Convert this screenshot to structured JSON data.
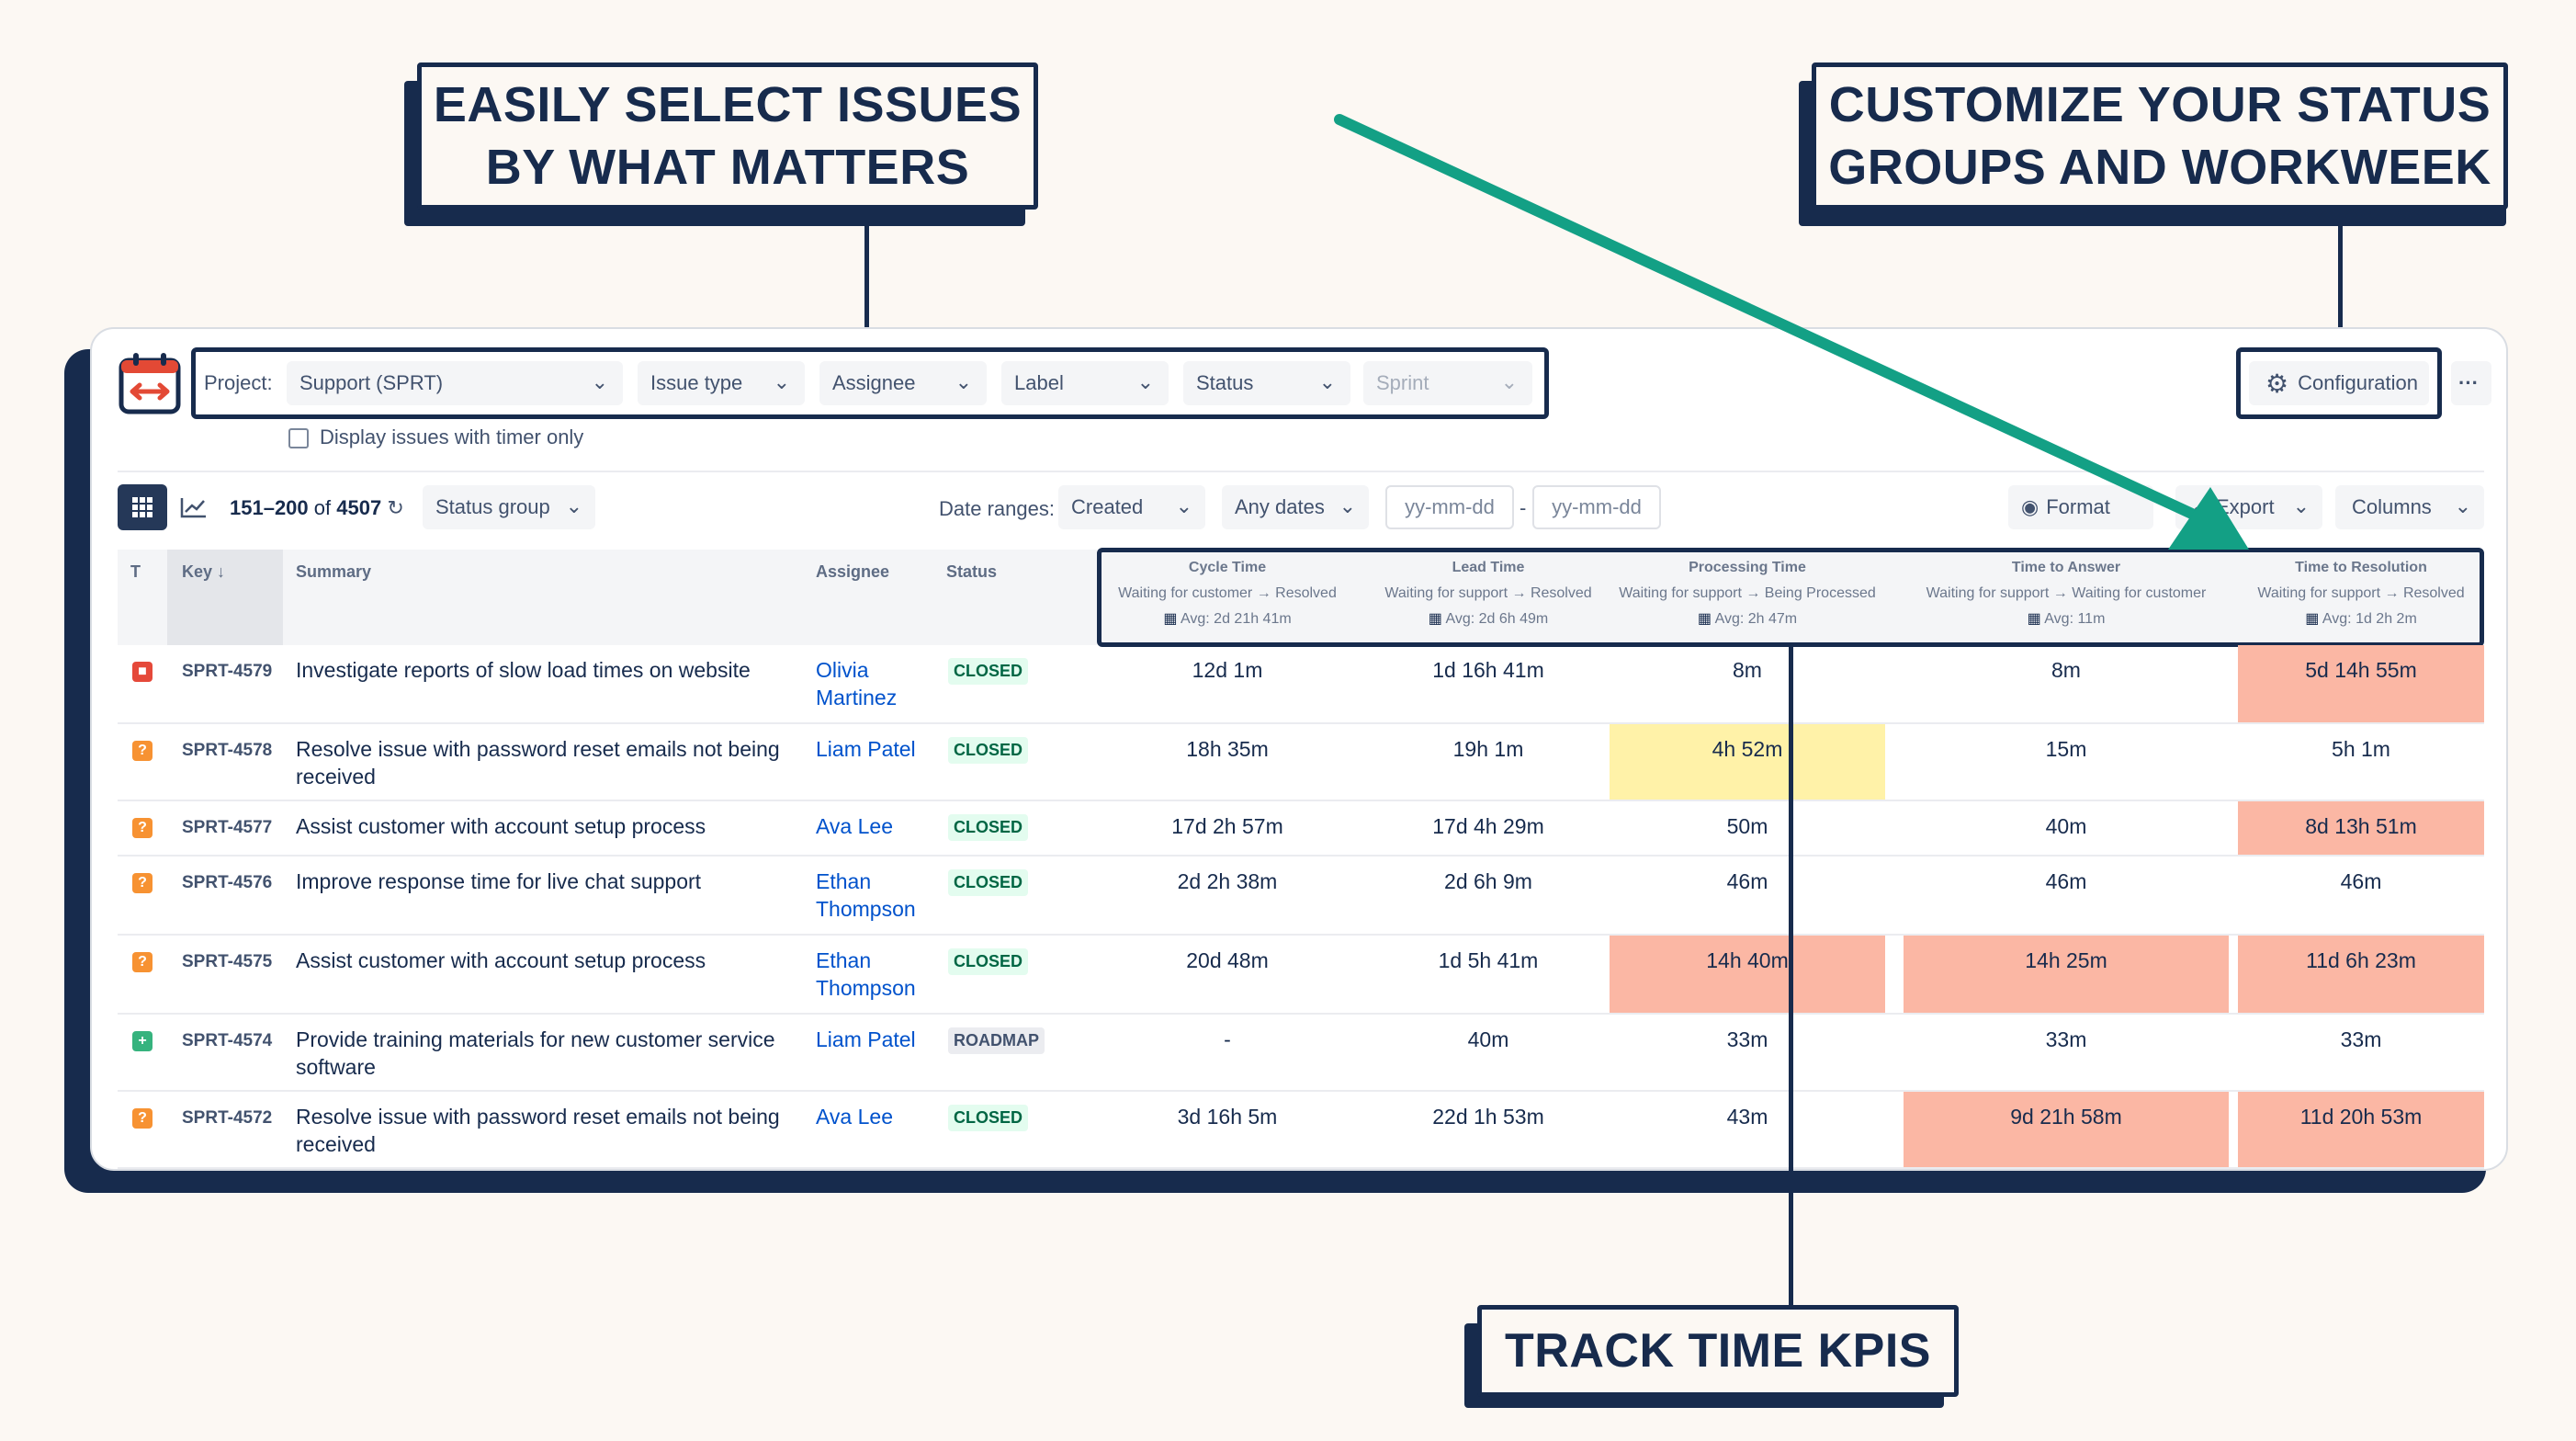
{
  "callouts": {
    "select_issues": [
      "EASILY SELECT ISSUES",
      "BY WHAT MATTERS"
    ],
    "customize": [
      "CUSTOMIZE YOUR STATUS",
      "GROUPS AND WORKWEEK"
    ],
    "track": [
      "TRACK TIME KPIS"
    ]
  },
  "colors": {
    "arrow": "#13a085",
    "dark": "#172b4d",
    "highlight_red": "#fbb7a4",
    "highlight_yellow": "#fff2a8",
    "closed_bg": "#e3fcef"
  },
  "toolbar": {
    "project_label": "Project:",
    "project_value": "Support (SPRT)",
    "filters": [
      "Issue type",
      "Assignee",
      "Label",
      "Status",
      "Sprint"
    ],
    "configuration": "Configuration",
    "more": "···",
    "timer_only": "Display issues with timer only"
  },
  "subbar": {
    "range": "151–200",
    "of": "of",
    "total": "4507",
    "status_group": "Status group",
    "date_ranges_label": "Date ranges:",
    "created": "Created",
    "any_dates": "Any dates",
    "date_from_placeholder": "yy-mm-dd",
    "date_to_placeholder": "yy-mm-dd",
    "dash": "-",
    "format": "Format",
    "export": "Export",
    "columns": "Columns"
  },
  "table": {
    "headers": {
      "type": "T",
      "key": "Key ↓",
      "summary": "Summary",
      "assignee": "Assignee",
      "status": "Status"
    },
    "kpis": [
      {
        "title": "Cycle Time",
        "range": "Waiting for customer → Resolved",
        "avg": "Avg: 2d 21h 41m"
      },
      {
        "title": "Lead Time",
        "range": "Waiting for support → Resolved",
        "avg": "Avg: 2d 6h 49m"
      },
      {
        "title": "Processing Time",
        "range": "Waiting for support → Being Processed",
        "avg": "Avg: 2h 47m"
      },
      {
        "title": "Time to Answer",
        "range": "Waiting for support → Waiting for customer",
        "avg": "Avg: 11m"
      },
      {
        "title": "Time to Resolution",
        "range": "Waiting for support → Resolved",
        "avg": "Avg: 1d 2h 2m"
      }
    ],
    "rows": [
      {
        "type": "bug",
        "key": "SPRT-4579",
        "summary": [
          "Investigate reports of slow load times on website"
        ],
        "assignee": [
          "Olivia",
          "Martinez"
        ],
        "status": "CLOSED",
        "kpis": [
          "12d 1m",
          "1d 16h 41m",
          "8m",
          "8m",
          "5d 14h 55m"
        ],
        "hl": [
          "",
          "",
          "",
          "",
          "red"
        ]
      },
      {
        "type": "question",
        "key": "SPRT-4578",
        "summary": [
          "Resolve issue with password reset emails not being",
          "received"
        ],
        "assignee": [
          "Liam Patel"
        ],
        "status": "CLOSED",
        "kpis": [
          "18h  35m",
          "19h 1m",
          "4h 52m",
          "15m",
          "5h 1m"
        ],
        "hl": [
          "",
          "",
          "yellow",
          "",
          ""
        ]
      },
      {
        "type": "question",
        "key": "SPRT-4577",
        "summary": [
          "Assist customer with account setup process"
        ],
        "assignee": [
          "Ava Lee"
        ],
        "status": "CLOSED",
        "kpis": [
          "17d 2h 57m",
          "17d 4h 29m",
          "50m",
          "40m",
          "8d 13h 51m"
        ],
        "hl": [
          "",
          "",
          "",
          "",
          "red"
        ]
      },
      {
        "type": "question",
        "key": "SPRT-4576",
        "summary": [
          "Improve response time for live chat support"
        ],
        "assignee": [
          "Ethan",
          "Thompson"
        ],
        "status": "CLOSED",
        "kpis": [
          "2d 2h 38m",
          "2d 6h 9m",
          "46m",
          "46m",
          "46m"
        ],
        "hl": [
          "",
          "",
          "",
          "",
          ""
        ]
      },
      {
        "type": "question",
        "key": "SPRT-4575",
        "summary": [
          "Assist customer with account setup process"
        ],
        "assignee": [
          "Ethan",
          "Thompson"
        ],
        "status": "CLOSED",
        "kpis": [
          "20d 48m",
          "1d 5h 41m",
          "14h 40m",
          "14h 25m",
          "11d 6h 23m"
        ],
        "hl": [
          "",
          "",
          "red",
          "red",
          "red"
        ]
      },
      {
        "type": "new",
        "key": "SPRT-4574",
        "summary": [
          "Provide training materials for new customer service",
          "software"
        ],
        "assignee": [
          "Liam Patel"
        ],
        "status": "ROADMAP",
        "kpis": [
          "-",
          "40m",
          "33m",
          "33m",
          "33m"
        ],
        "hl": [
          "",
          "",
          "",
          "",
          ""
        ]
      },
      {
        "type": "question",
        "key": "SPRT-4572",
        "summary": [
          "Resolve issue with password reset emails not being",
          "received"
        ],
        "assignee": [
          "Ava Lee"
        ],
        "status": "CLOSED",
        "kpis": [
          "3d 16h 5m",
          "22d 1h 53m",
          "43m",
          "9d 21h 58m",
          "11d 20h 53m"
        ],
        "hl": [
          "",
          "",
          "",
          "red",
          "red"
        ]
      }
    ]
  }
}
